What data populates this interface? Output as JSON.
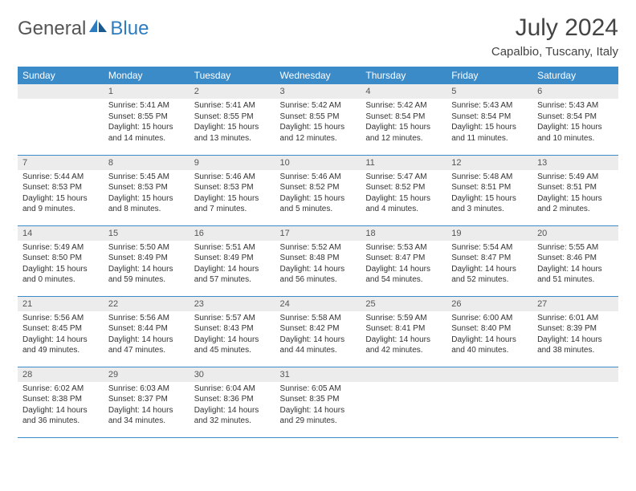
{
  "logo": {
    "text1": "General",
    "text2": "Blue"
  },
  "title": "July 2024",
  "location": "Capalbio, Tuscany, Italy",
  "header_bg": "#3b8bc9",
  "header_fg": "#ffffff",
  "daynum_bg": "#ececec",
  "divider_color": "#3b8bc9",
  "days": [
    "Sunday",
    "Monday",
    "Tuesday",
    "Wednesday",
    "Thursday",
    "Friday",
    "Saturday"
  ],
  "weeks": [
    [
      null,
      {
        "n": "1",
        "sr": "5:41 AM",
        "ss": "8:55 PM",
        "dh": "15",
        "dm": "14"
      },
      {
        "n": "2",
        "sr": "5:41 AM",
        "ss": "8:55 PM",
        "dh": "15",
        "dm": "13"
      },
      {
        "n": "3",
        "sr": "5:42 AM",
        "ss": "8:55 PM",
        "dh": "15",
        "dm": "12"
      },
      {
        "n": "4",
        "sr": "5:42 AM",
        "ss": "8:54 PM",
        "dh": "15",
        "dm": "12"
      },
      {
        "n": "5",
        "sr": "5:43 AM",
        "ss": "8:54 PM",
        "dh": "15",
        "dm": "11"
      },
      {
        "n": "6",
        "sr": "5:43 AM",
        "ss": "8:54 PM",
        "dh": "15",
        "dm": "10"
      }
    ],
    [
      {
        "n": "7",
        "sr": "5:44 AM",
        "ss": "8:53 PM",
        "dh": "15",
        "dm": "9"
      },
      {
        "n": "8",
        "sr": "5:45 AM",
        "ss": "8:53 PM",
        "dh": "15",
        "dm": "8"
      },
      {
        "n": "9",
        "sr": "5:46 AM",
        "ss": "8:53 PM",
        "dh": "15",
        "dm": "7"
      },
      {
        "n": "10",
        "sr": "5:46 AM",
        "ss": "8:52 PM",
        "dh": "15",
        "dm": "5"
      },
      {
        "n": "11",
        "sr": "5:47 AM",
        "ss": "8:52 PM",
        "dh": "15",
        "dm": "4"
      },
      {
        "n": "12",
        "sr": "5:48 AM",
        "ss": "8:51 PM",
        "dh": "15",
        "dm": "3"
      },
      {
        "n": "13",
        "sr": "5:49 AM",
        "ss": "8:51 PM",
        "dh": "15",
        "dm": "2"
      }
    ],
    [
      {
        "n": "14",
        "sr": "5:49 AM",
        "ss": "8:50 PM",
        "dh": "15",
        "dm": "0"
      },
      {
        "n": "15",
        "sr": "5:50 AM",
        "ss": "8:49 PM",
        "dh": "14",
        "dm": "59"
      },
      {
        "n": "16",
        "sr": "5:51 AM",
        "ss": "8:49 PM",
        "dh": "14",
        "dm": "57"
      },
      {
        "n": "17",
        "sr": "5:52 AM",
        "ss": "8:48 PM",
        "dh": "14",
        "dm": "56"
      },
      {
        "n": "18",
        "sr": "5:53 AM",
        "ss": "8:47 PM",
        "dh": "14",
        "dm": "54"
      },
      {
        "n": "19",
        "sr": "5:54 AM",
        "ss": "8:47 PM",
        "dh": "14",
        "dm": "52"
      },
      {
        "n": "20",
        "sr": "5:55 AM",
        "ss": "8:46 PM",
        "dh": "14",
        "dm": "51"
      }
    ],
    [
      {
        "n": "21",
        "sr": "5:56 AM",
        "ss": "8:45 PM",
        "dh": "14",
        "dm": "49"
      },
      {
        "n": "22",
        "sr": "5:56 AM",
        "ss": "8:44 PM",
        "dh": "14",
        "dm": "47"
      },
      {
        "n": "23",
        "sr": "5:57 AM",
        "ss": "8:43 PM",
        "dh": "14",
        "dm": "45"
      },
      {
        "n": "24",
        "sr": "5:58 AM",
        "ss": "8:42 PM",
        "dh": "14",
        "dm": "44"
      },
      {
        "n": "25",
        "sr": "5:59 AM",
        "ss": "8:41 PM",
        "dh": "14",
        "dm": "42"
      },
      {
        "n": "26",
        "sr": "6:00 AM",
        "ss": "8:40 PM",
        "dh": "14",
        "dm": "40"
      },
      {
        "n": "27",
        "sr": "6:01 AM",
        "ss": "8:39 PM",
        "dh": "14",
        "dm": "38"
      }
    ],
    [
      {
        "n": "28",
        "sr": "6:02 AM",
        "ss": "8:38 PM",
        "dh": "14",
        "dm": "36"
      },
      {
        "n": "29",
        "sr": "6:03 AM",
        "ss": "8:37 PM",
        "dh": "14",
        "dm": "34"
      },
      {
        "n": "30",
        "sr": "6:04 AM",
        "ss": "8:36 PM",
        "dh": "14",
        "dm": "32"
      },
      {
        "n": "31",
        "sr": "6:05 AM",
        "ss": "8:35 PM",
        "dh": "14",
        "dm": "29"
      },
      null,
      null,
      null
    ]
  ]
}
